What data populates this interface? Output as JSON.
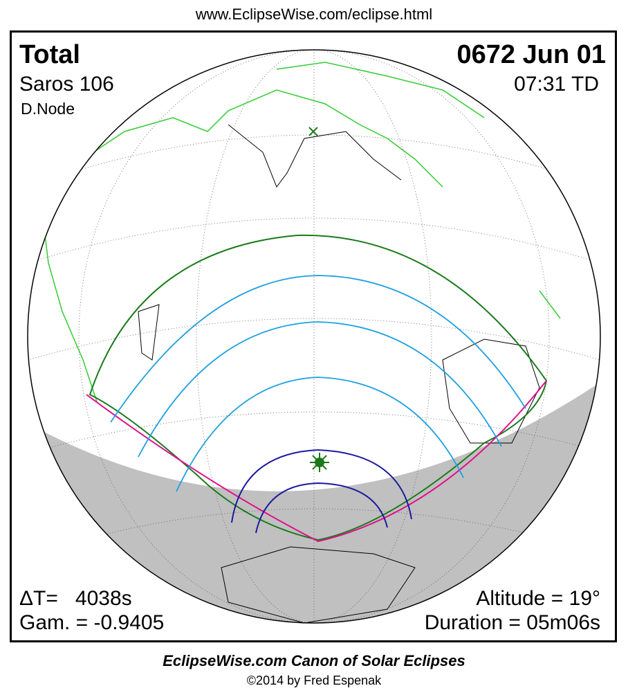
{
  "header": {
    "url": "www.EclipseWise.com/eclipse.html"
  },
  "eclipse": {
    "type": "Total",
    "date": "0672 Jun 01",
    "saros": "Saros 106",
    "time": "07:31 TD",
    "node": "D.Node",
    "delta_t": "ΔT=   4038s",
    "gamma": "Gam. = -0.9405",
    "altitude": "Altitude = 19°",
    "duration": "Duration = 05m06s"
  },
  "footer": {
    "title": "EclipseWise.com Canon of Solar Eclipses",
    "copyright": "©2014 by Fred Espenak"
  }
}
